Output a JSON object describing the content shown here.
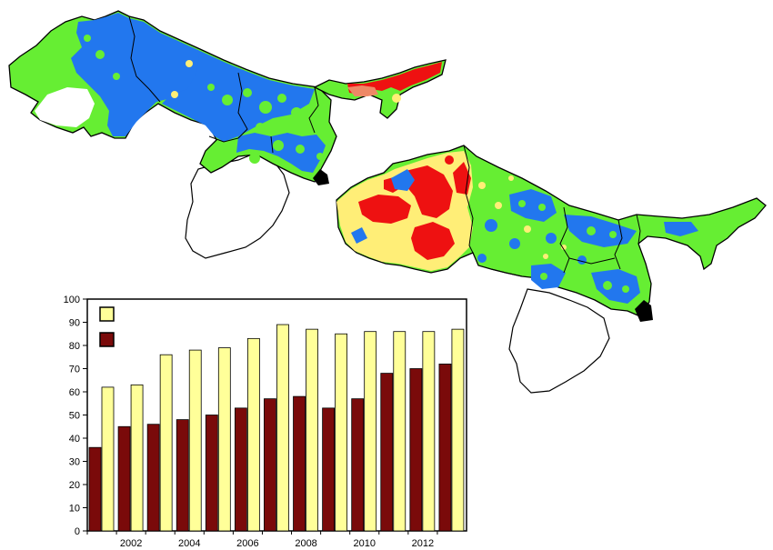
{
  "colors": {
    "map_green": "#66ee33",
    "map_blue": "#2277ee",
    "map_red": "#ee1111",
    "map_yellow": "#ffee77",
    "map_salmon": "#ee8866",
    "map_white": "#ffffff",
    "outline": "#000000",
    "bar_light": "#ffff99",
    "bar_dark": "#7a0a0a"
  },
  "maps": [
    {
      "name": "top-map",
      "dominant_colors": [
        "map_blue",
        "map_green",
        "map_red"
      ]
    },
    {
      "name": "bottom-map",
      "dominant_colors": [
        "map_green",
        "map_blue",
        "map_red",
        "map_yellow"
      ]
    }
  ],
  "chart_data": {
    "type": "bar",
    "categories": [
      "2001",
      "2002",
      "2003",
      "2004",
      "2005",
      "2006",
      "2007",
      "2008",
      "2009",
      "2010",
      "2011",
      "2012",
      "2013"
    ],
    "series": [
      {
        "color": "#7a0a0a",
        "values": [
          36,
          45,
          46,
          48,
          50,
          53,
          57,
          58,
          53,
          57,
          68,
          70,
          72
        ]
      },
      {
        "color": "#ffff99",
        "values": [
          62,
          63,
          76,
          78,
          79,
          83,
          89,
          87,
          85,
          86,
          86,
          86,
          87
        ]
      }
    ],
    "x_tick_labels": [
      "2002",
      "2004",
      "2006",
      "2008",
      "2010",
      "2012"
    ],
    "y_tick_labels": [
      "0",
      "10",
      "20",
      "30",
      "40",
      "50",
      "60",
      "70",
      "80",
      "90",
      "100"
    ],
    "ylim": [
      0,
      100
    ],
    "legend": {
      "placement": "top-left",
      "labels": [
        "",
        ""
      ]
    },
    "title": "",
    "xlabel": "",
    "ylabel": "",
    "grid": false
  }
}
